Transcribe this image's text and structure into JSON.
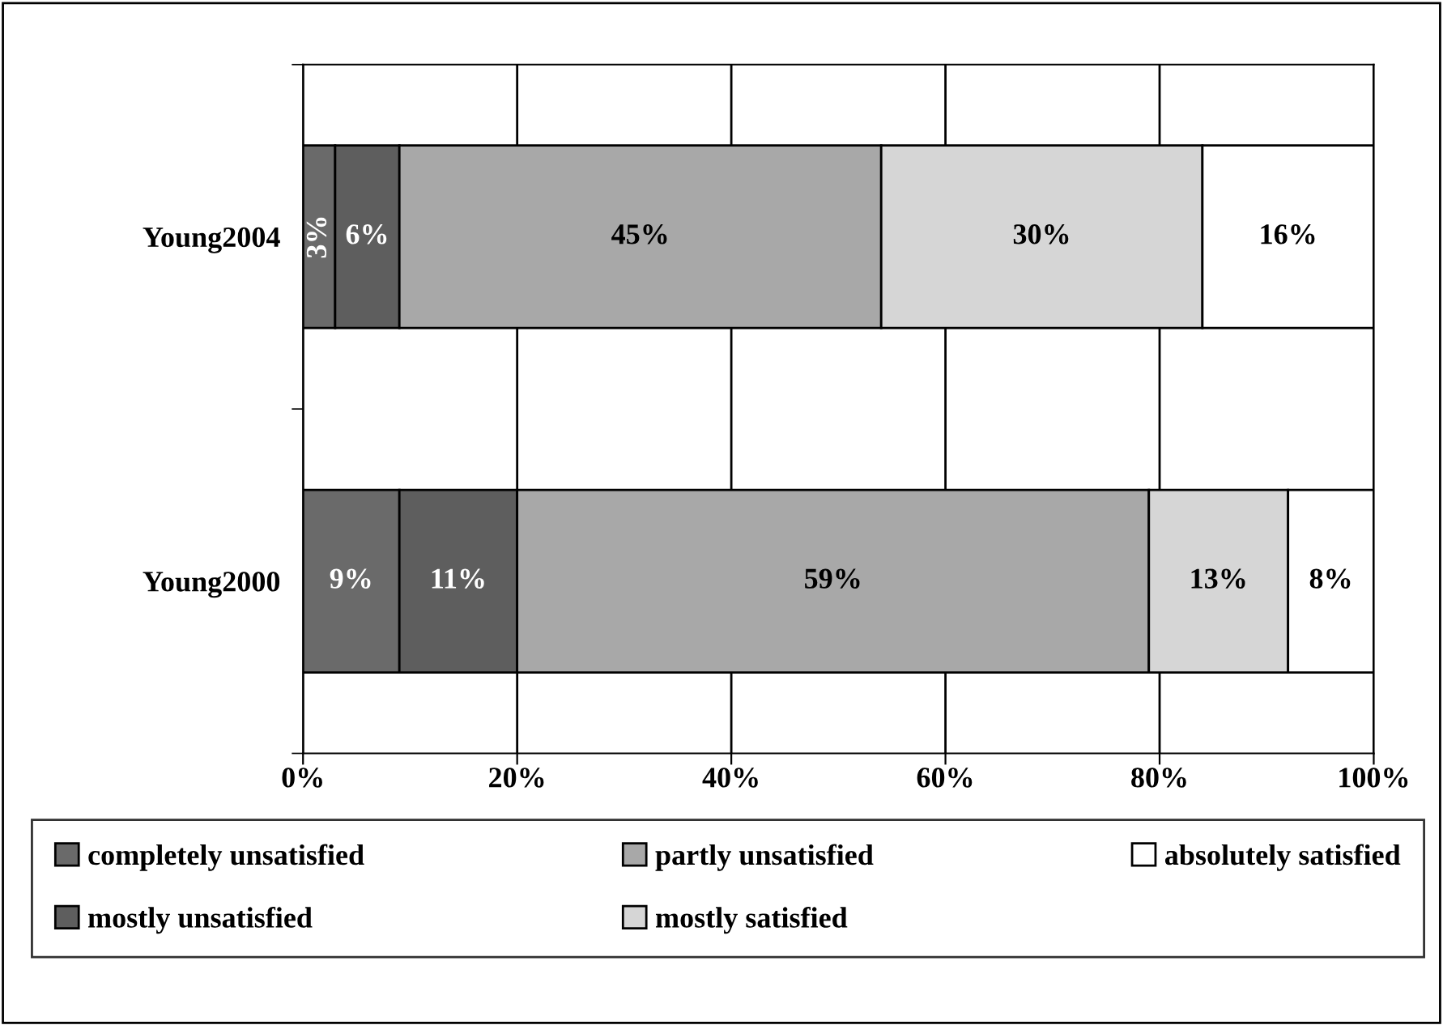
{
  "chart_data": {
    "type": "bar",
    "orientation": "horizontal",
    "stacked": true,
    "categories": [
      "Young2004",
      "Young2000"
    ],
    "series": [
      {
        "name": "completely unsatisfied",
        "color": "#6a6a6a",
        "values": [
          3,
          9
        ],
        "value_labels": [
          "3%",
          "9%"
        ]
      },
      {
        "name": "mostly unsatisfied",
        "color": "#5e5e5e",
        "values": [
          6,
          11
        ],
        "value_labels": [
          "6%",
          "11%"
        ]
      },
      {
        "name": "partly unsatisfied",
        "color": "#a8a8a8",
        "values": [
          45,
          59
        ],
        "value_labels": [
          "45%",
          "59%"
        ]
      },
      {
        "name": "mostly satisfied",
        "color": "#d6d6d6",
        "values": [
          30,
          13
        ],
        "value_labels": [
          "30%",
          "13%"
        ]
      },
      {
        "name": "absolutely satisfied",
        "color": "#ffffff",
        "values": [
          16,
          8
        ],
        "value_labels": [
          "16%",
          "8%"
        ]
      }
    ],
    "xlim": [
      0,
      100
    ],
    "xticks": [
      {
        "value": 0,
        "label": "0%"
      },
      {
        "value": 20,
        "label": "20%"
      },
      {
        "value": 40,
        "label": "40%"
      },
      {
        "value": 60,
        "label": "60%"
      },
      {
        "value": 80,
        "label": "80%"
      },
      {
        "value": 100,
        "label": "100%"
      }
    ],
    "grid": "x",
    "legend": "bottom"
  }
}
